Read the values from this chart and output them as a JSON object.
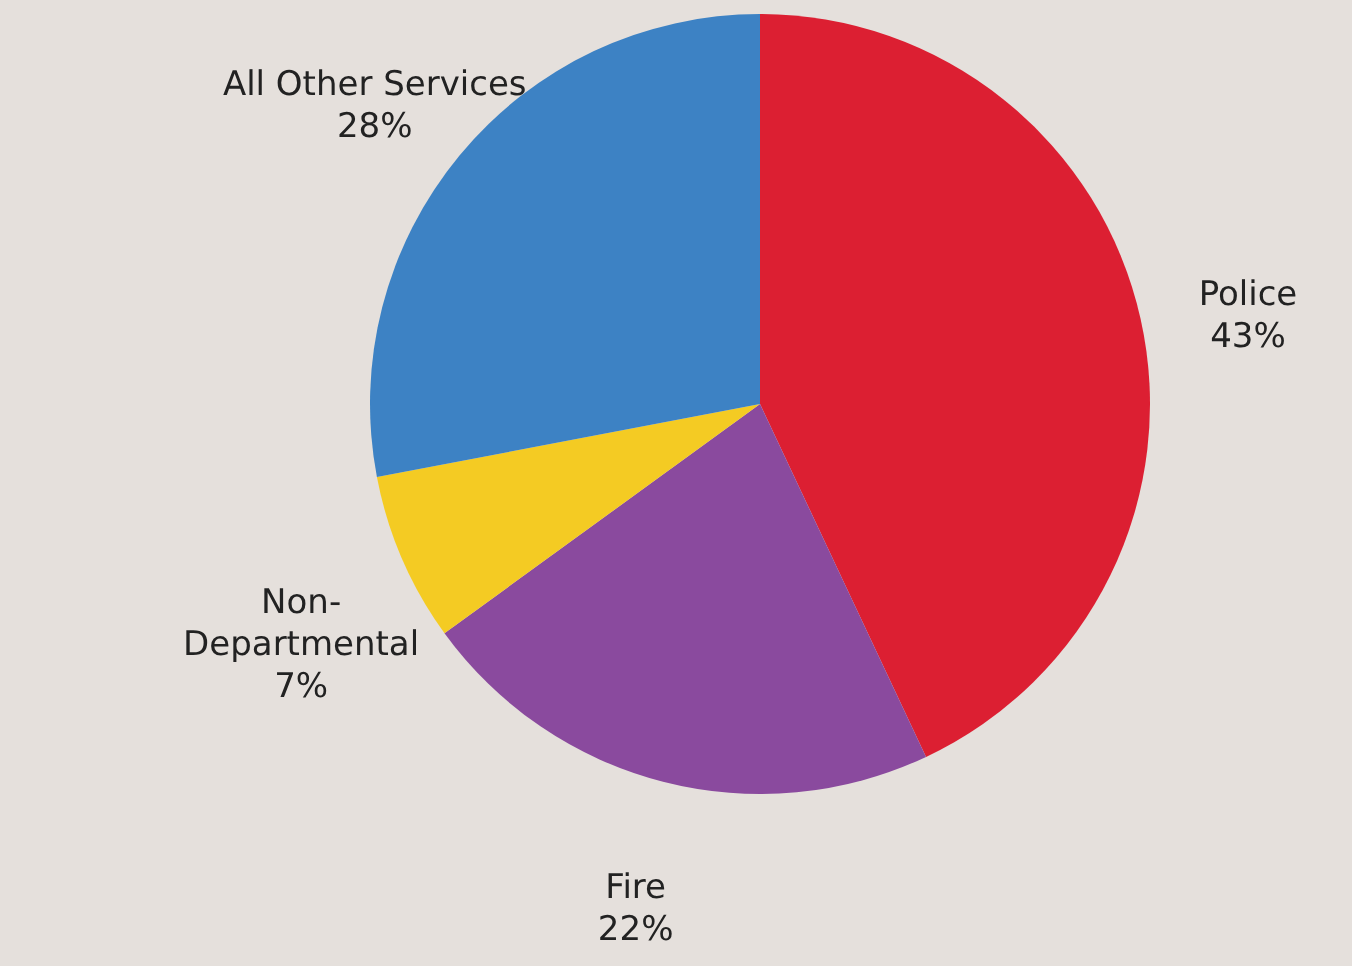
{
  "chart_data": {
    "type": "pie",
    "categories": [
      "Police",
      "Fire",
      "Non-Departmental",
      "All Other Services"
    ],
    "values": [
      43,
      22,
      7,
      28
    ],
    "value_labels": [
      "43%",
      "22%",
      "7%",
      "28%"
    ],
    "colors": [
      "#dc1f32",
      "#8a4a9e",
      "#f4cb23",
      "#3d82c4"
    ]
  }
}
